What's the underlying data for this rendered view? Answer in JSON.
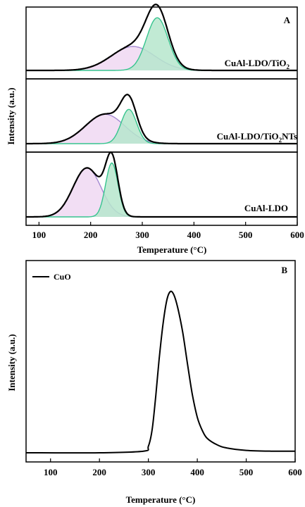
{
  "chart_data": [
    {
      "type": "line",
      "panel_label": "A",
      "xlabel": "Temperature (°C)",
      "ylabel": "Intensity (a.u.)",
      "xlim": [
        75,
        600
      ],
      "xticks": [
        100,
        200,
        300,
        400,
        500,
        600
      ],
      "grid": false,
      "subpanels": [
        {
          "label": "CuAl-LDO/TiO2",
          "label_main": "CuAl-LDO/TiO",
          "label_sub": "2",
          "baseline": 0,
          "peaks": [
            {
              "center": 282,
              "height": 0.4,
              "width": 42,
              "fill": "#f0d8f2",
              "stroke": "#a48ad2"
            },
            {
              "center": 329,
              "height": 0.88,
              "width": 21,
              "fill": "#b6e6cc",
              "stroke": "#36c48e"
            }
          ],
          "total_stroke": "#000000"
        },
        {
          "label": "CuAl-LDO/TiO2NTs",
          "label_main": "CuAl-LDO/TiO",
          "label_sub": "2",
          "label_tail": "NTs",
          "baseline": 0,
          "peaks": [
            {
              "center": 228,
              "height": 0.48,
              "width": 38,
              "fill": "#f0d8f2",
              "stroke": "#a48ad2"
            },
            {
              "center": 274,
              "height": 0.56,
              "width": 15,
              "fill": "#b6e6cc",
              "stroke": "#36c48e"
            }
          ],
          "total_stroke": "#000000"
        },
        {
          "label": "CuAl-LDO",
          "label_main": "CuAl-LDO",
          "baseline": 0,
          "peaks": [
            {
              "center": 193,
              "height": 0.8,
              "width": 27,
              "fill": "#f0d8f2",
              "stroke": "#a48ad2"
            },
            {
              "center": 241,
              "height": 0.88,
              "width": 12,
              "fill": "#b6e6cc",
              "stroke": "#36c48e"
            }
          ],
          "total_stroke": "#000000"
        }
      ]
    },
    {
      "type": "line",
      "panel_label": "B",
      "xlabel": "Temperature (°C)",
      "ylabel": "Intensity (a.u.)",
      "xlim": [
        50,
        600
      ],
      "xticks": [
        100,
        200,
        300,
        400,
        500,
        600
      ],
      "grid": false,
      "legend_placement": "top-left",
      "series": [
        {
          "name": "CuO",
          "color": "#000000",
          "x": [
            50,
            200,
            290,
            300,
            308,
            315,
            322,
            330,
            338,
            345,
            352,
            360,
            370,
            380,
            390,
            400,
            410,
            420,
            440,
            460,
            500,
            550,
            600
          ],
          "y": [
            0.0,
            0.0,
            0.01,
            0.04,
            0.15,
            0.35,
            0.58,
            0.8,
            0.95,
            1.0,
            0.98,
            0.9,
            0.75,
            0.55,
            0.36,
            0.22,
            0.14,
            0.09,
            0.05,
            0.03,
            0.015,
            0.01,
            0.01
          ]
        }
      ]
    }
  ]
}
